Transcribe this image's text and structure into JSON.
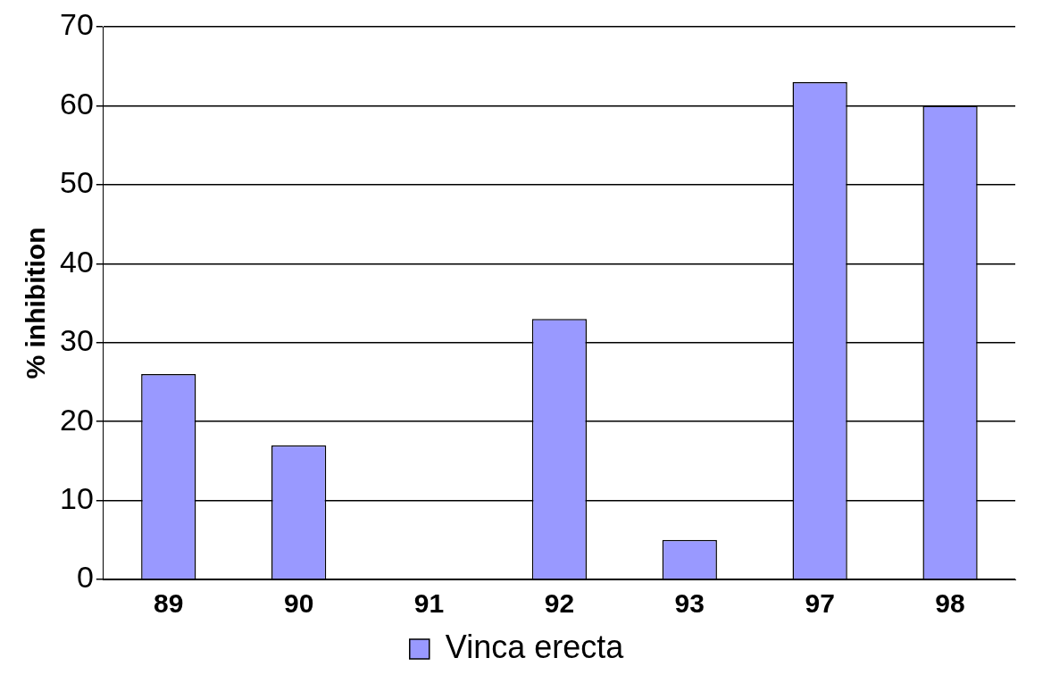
{
  "chart_data": {
    "type": "bar",
    "ylabel": "% inhibition",
    "categories": [
      "89",
      "90",
      "91",
      "92",
      "93",
      "97",
      "98"
    ],
    "series": [
      {
        "name": "Vinca erecta",
        "color": "#9999ff",
        "values": [
          26,
          17,
          0,
          33,
          5,
          63,
          60
        ]
      }
    ],
    "ylim": [
      0,
      70
    ],
    "yticks": [
      0,
      10,
      20,
      30,
      40,
      50,
      60,
      70
    ],
    "grid": "y",
    "legend": "bottom"
  }
}
